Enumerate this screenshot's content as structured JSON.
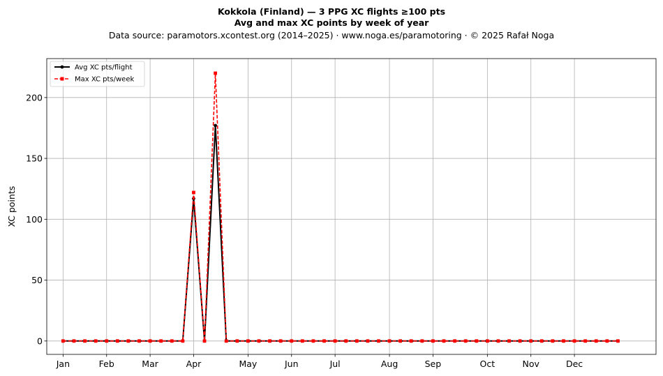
{
  "chart_data": {
    "type": "line",
    "title_line1": "Kokkola (Finland)  —  3 PPG XC flights ≥100 pts",
    "title_line2": "Avg and max XC points by week of year",
    "subtitle": "Data source: paramotors.xcontest.org (2014–2025)  ·  www.noga.es/paramotoring  ·  © 2025 Rafał Noga",
    "ylabel": "XC points",
    "xlabel": "",
    "xlim": [
      -1.5,
      54.5
    ],
    "ylim": [
      -11,
      232
    ],
    "yticks": [
      0,
      50,
      100,
      150,
      200
    ],
    "xticks": [
      {
        "label": "Jan",
        "x": 0
      },
      {
        "label": "Feb",
        "x": 4
      },
      {
        "label": "Mar",
        "x": 8
      },
      {
        "label": "Apr",
        "x": 12
      },
      {
        "label": "May",
        "x": 17
      },
      {
        "label": "Jun",
        "x": 21
      },
      {
        "label": "Jul",
        "x": 25
      },
      {
        "label": "Aug",
        "x": 30
      },
      {
        "label": "Sep",
        "x": 34
      },
      {
        "label": "Oct",
        "x": 39
      },
      {
        "label": "Nov",
        "x": 43
      },
      {
        "label": "Dec",
        "x": 47
      }
    ],
    "grid": true,
    "legend_position": "top-left",
    "weeks": [
      0,
      1,
      2,
      3,
      4,
      5,
      6,
      7,
      8,
      9,
      10,
      11,
      12,
      13,
      14,
      15,
      16,
      17,
      18,
      19,
      20,
      21,
      22,
      23,
      24,
      25,
      26,
      27,
      28,
      29,
      30,
      31,
      32,
      33,
      34,
      35,
      36,
      37,
      38,
      39,
      40,
      41,
      42,
      43,
      44,
      45,
      46,
      47,
      48,
      49,
      50,
      51
    ],
    "series": [
      {
        "name": "Avg XC pts/flight",
        "color": "#000000",
        "style": "solid",
        "marker": "circle",
        "values": [
          0,
          0,
          0,
          0,
          0,
          0,
          0,
          0,
          0,
          0,
          0,
          0,
          117,
          0,
          177,
          0,
          0,
          0,
          0,
          0,
          0,
          0,
          0,
          0,
          0,
          0,
          0,
          0,
          0,
          0,
          0,
          0,
          0,
          0,
          0,
          0,
          0,
          0,
          0,
          0,
          0,
          0,
          0,
          0,
          0,
          0,
          0,
          0,
          0,
          0,
          0,
          0
        ]
      },
      {
        "name": "Max XC pts/week",
        "color": "#ff0000",
        "style": "dashed",
        "marker": "square",
        "values": [
          0,
          0,
          0,
          0,
          0,
          0,
          0,
          0,
          0,
          0,
          0,
          0,
          122,
          0,
          220,
          0,
          0,
          0,
          0,
          0,
          0,
          0,
          0,
          0,
          0,
          0,
          0,
          0,
          0,
          0,
          0,
          0,
          0,
          0,
          0,
          0,
          0,
          0,
          0,
          0,
          0,
          0,
          0,
          0,
          0,
          0,
          0,
          0,
          0,
          0,
          0,
          0
        ]
      }
    ]
  }
}
